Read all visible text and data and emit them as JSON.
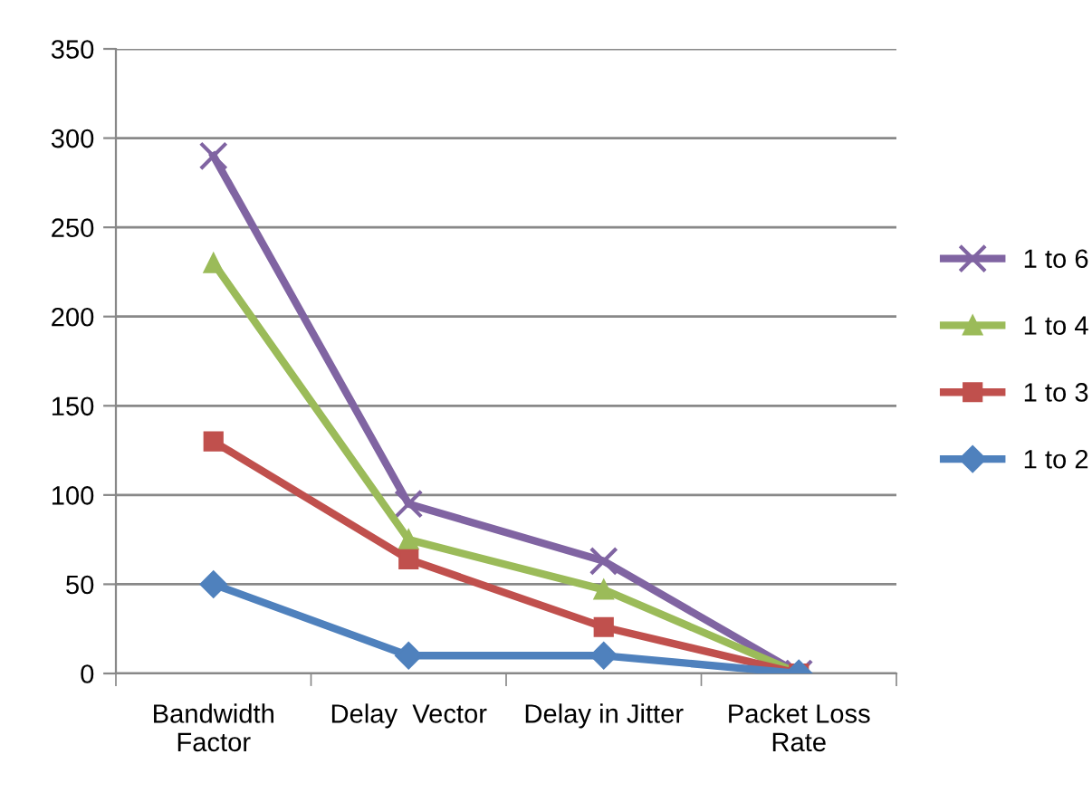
{
  "chart_data": {
    "type": "line",
    "categories": [
      "Bandwidth\nFactor",
      "Delay  Vector",
      "Delay in Jitter",
      "Packet Loss\nRate"
    ],
    "series": [
      {
        "name": "1 to 6",
        "color": "#8064a2",
        "marker": "cross",
        "values": [
          290,
          95,
          63,
          0
        ]
      },
      {
        "name": "1 to 4",
        "color": "#9bbb59",
        "marker": "triangle",
        "values": [
          230,
          75,
          47,
          0
        ]
      },
      {
        "name": "1 to 3",
        "color": "#c0504d",
        "marker": "square",
        "values": [
          130,
          64,
          26,
          0
        ]
      },
      {
        "name": "1 to 2",
        "color": "#4f81bd",
        "marker": "diamond",
        "values": [
          50,
          10,
          10,
          0
        ]
      }
    ],
    "ylim": [
      0,
      350
    ],
    "yticks": [
      0,
      50,
      100,
      150,
      200,
      250,
      300,
      350
    ],
    "grid": "y",
    "legend": "right"
  }
}
